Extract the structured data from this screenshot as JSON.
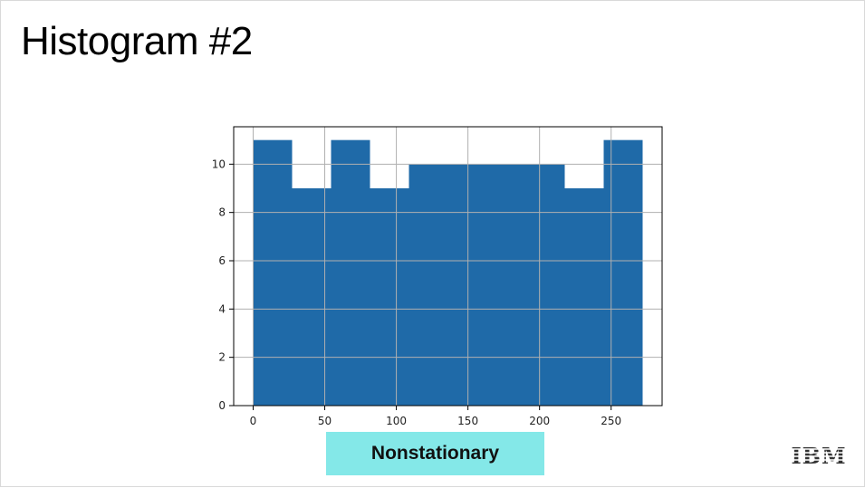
{
  "slide": {
    "title": "Histogram #2",
    "label": "Nonstationary",
    "logo_text": "IBM"
  },
  "colors": {
    "bar": "#1f6aa8",
    "label_bg": "#84e8e8",
    "grid": "#b0b0b0"
  },
  "chart_data": {
    "type": "bar",
    "title": "",
    "xlabel": "",
    "ylabel": "",
    "bin_edges": [
      0,
      27.2,
      54.4,
      81.6,
      108.8,
      136,
      163.2,
      190.4,
      217.6,
      244.8,
      272
    ],
    "values": [
      11,
      9,
      11,
      9,
      10,
      10,
      10,
      10,
      9,
      11
    ],
    "xlim": [
      -13.6,
      285.6
    ],
    "ylim": [
      0,
      11.55
    ],
    "xticks": [
      0,
      50,
      100,
      150,
      200,
      250
    ],
    "yticks": [
      0,
      2,
      4,
      6,
      8,
      10
    ],
    "grid": true
  }
}
